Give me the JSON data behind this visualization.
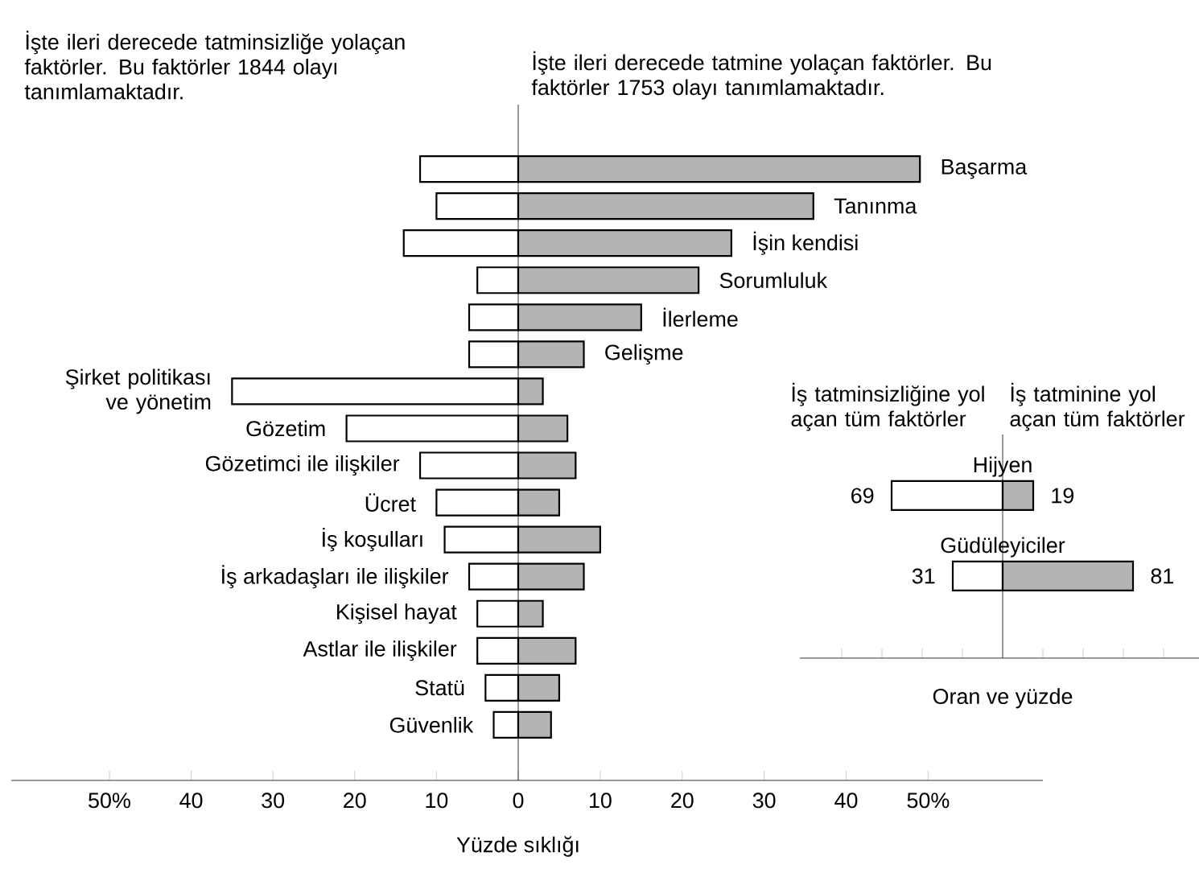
{
  "chart_data": [
    {
      "type": "bar",
      "orientation": "horizontal",
      "xlabel": "Yüzde sıklığı",
      "annotations": [
        "İşte ileri derecede tatminsizliğe yolaçan faktörler. Bu faktörler 1844 olayı tanımlamaktadır."
      ],
      "categories": [
        null,
        null,
        null,
        null,
        null,
        null,
        "Şirket politikası ve yönetim",
        "Gözetim",
        "Gözetimci ile ilişkiler",
        "Ücret",
        "İş koşulları",
        "İş arkadaşları ile ilişkiler",
        "Kişisel hayat",
        "Astlar ile ilişkiler",
        "Statü",
        "Güvenlik"
      ],
      "series": [
        {
          "color": "#ffffff",
          "values": [
            12,
            10,
            14,
            5,
            6,
            6,
            35,
            21,
            12,
            10,
            9,
            6,
            5,
            5,
            4,
            3
          ]
        }
      ],
      "xlim": [
        62,
        0
      ],
      "xticks": [
        {
          "value": 50,
          "label": "50%"
        },
        40,
        30,
        20,
        10
      ]
    },
    {
      "type": "bar",
      "orientation": "horizontal",
      "annotations": [
        "İşte ileri derecede tatmine yolaçan faktörler. Bu faktörler 1753 olayı tanımlamaktadır."
      ],
      "categories": [
        "Başarma",
        "Tanınma",
        "İşin kendisi",
        "Sorumluluk",
        "İlerleme",
        "Gelişme",
        null,
        null,
        null,
        null,
        null,
        null,
        null,
        null,
        null,
        null
      ],
      "series": [
        {
          "color": "#b4b4b4",
          "values": [
            49,
            36,
            26,
            22,
            15,
            8,
            3,
            6,
            7,
            5,
            10,
            8,
            3,
            7,
            5,
            4
          ]
        }
      ],
      "xlim": [
        0,
        64
      ],
      "xticks": [
        0,
        10,
        20,
        30,
        40,
        {
          "value": 50,
          "label": "50%"
        }
      ]
    },
    {
      "type": "bar",
      "orientation": "horizontal",
      "xlabel": "Oran ve yüzde",
      "data_labels": true,
      "tick_labels": "y",
      "categories": [
        "Hijyen",
        "Güdüleyiciler"
      ],
      "series": [
        {
          "name": "İş tatminsizliğine yol açan tüm faktörler",
          "color": "#ffffff",
          "values": [
            69,
            31
          ]
        }
      ]
    },
    {
      "type": "bar",
      "orientation": "horizontal",
      "data_labels": true,
      "tick_labels": false,
      "categories": [
        null,
        null
      ],
      "series": [
        {
          "name": "İş tatminine yol açan tüm faktörler",
          "color": "#b4b4b4",
          "values": [
            19,
            81
          ]
        }
      ]
    }
  ]
}
